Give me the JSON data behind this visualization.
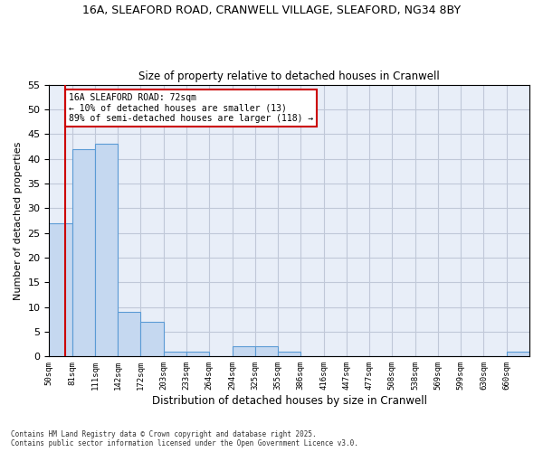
{
  "title_line1": "16A, SLEAFORD ROAD, CRANWELL VILLAGE, SLEAFORD, NG34 8BY",
  "title_line2": "Size of property relative to detached houses in Cranwell",
  "xlabel": "Distribution of detached houses by size in Cranwell",
  "ylabel": "Number of detached properties",
  "bins": [
    50,
    81,
    111,
    142,
    172,
    203,
    233,
    264,
    294,
    325,
    355,
    386,
    416,
    447,
    477,
    508,
    538,
    569,
    599,
    630,
    660
  ],
  "counts": [
    27,
    42,
    43,
    9,
    7,
    1,
    1,
    0,
    2,
    2,
    1,
    0,
    0,
    0,
    0,
    0,
    0,
    0,
    0,
    0,
    1
  ],
  "bar_color": "#c5d8f0",
  "bar_edge_color": "#5b9bd5",
  "grid_color": "#c0c8d8",
  "background_color": "#e8eef8",
  "property_line_color": "#cc0000",
  "property_sqm": 72,
  "annotation_text": "16A SLEAFORD ROAD: 72sqm\n← 10% of detached houses are smaller (13)\n89% of semi-detached houses are larger (118) →",
  "annotation_box_color": "#cc0000",
  "ylim": [
    0,
    55
  ],
  "yticks": [
    0,
    5,
    10,
    15,
    20,
    25,
    30,
    35,
    40,
    45,
    50,
    55
  ],
  "footer_line1": "Contains HM Land Registry data © Crown copyright and database right 2025.",
  "footer_line2": "Contains public sector information licensed under the Open Government Licence v3.0.",
  "tick_labels": [
    "50sqm",
    "81sqm",
    "111sqm",
    "142sqm",
    "172sqm",
    "203sqm",
    "233sqm",
    "264sqm",
    "294sqm",
    "325sqm",
    "355sqm",
    "386sqm",
    "416sqm",
    "447sqm",
    "477sqm",
    "508sqm",
    "538sqm",
    "569sqm",
    "599sqm",
    "630sqm",
    "660sqm"
  ]
}
